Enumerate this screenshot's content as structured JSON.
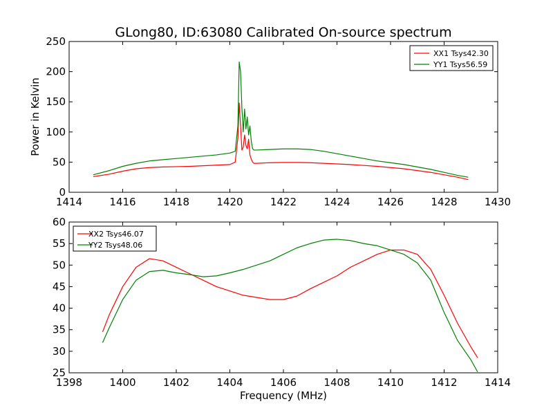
{
  "chart_data": [
    {
      "type": "line",
      "title": "GLong80, ID:63080 Calibrated On-source spectrum",
      "xlabel": "",
      "ylabel": "Power in Kelvin",
      "xlim": [
        1414,
        1430
      ],
      "ylim": [
        0,
        250
      ],
      "xticks": [
        1414,
        1416,
        1418,
        1420,
        1422,
        1424,
        1426,
        1428,
        1430
      ],
      "yticks": [
        0,
        50,
        100,
        150,
        200,
        250
      ],
      "legend_position": "top-right",
      "grid": false,
      "series": [
        {
          "name": "XX1 Tsys42.30",
          "color": "#ff0000",
          "x": [
            1414.9,
            1415.5,
            1416.0,
            1416.5,
            1417.0,
            1417.5,
            1418.0,
            1418.5,
            1419.0,
            1419.5,
            1420.0,
            1420.2,
            1420.3,
            1420.35,
            1420.4,
            1420.45,
            1420.5,
            1420.55,
            1420.6,
            1420.65,
            1420.7,
            1420.75,
            1420.8,
            1420.85,
            1420.9,
            1421.0,
            1421.5,
            1422.0,
            1422.5,
            1423.0,
            1423.5,
            1424.0,
            1424.5,
            1425.0,
            1425.5,
            1426.0,
            1426.5,
            1427.0,
            1427.5,
            1428.0,
            1428.5,
            1428.9
          ],
          "values": [
            26,
            30,
            35,
            39,
            41,
            42,
            42.5,
            43,
            44,
            45,
            46,
            50,
            90,
            148,
            110,
            70,
            75,
            95,
            78,
            72,
            88,
            62,
            55,
            50,
            48,
            48,
            49,
            49.5,
            49.5,
            49,
            48,
            47,
            46,
            44.5,
            43,
            41,
            39,
            36,
            33,
            29,
            25,
            21
          ]
        },
        {
          "name": "YY1 Tsys56.59",
          "color": "#008000",
          "x": [
            1414.9,
            1415.5,
            1416.0,
            1416.5,
            1417.0,
            1417.5,
            1418.0,
            1418.5,
            1419.0,
            1419.5,
            1420.0,
            1420.2,
            1420.3,
            1420.35,
            1420.4,
            1420.45,
            1420.5,
            1420.55,
            1420.6,
            1420.65,
            1420.7,
            1420.75,
            1420.8,
            1420.85,
            1420.9,
            1421.0,
            1421.5,
            1422.0,
            1422.5,
            1423.0,
            1423.5,
            1424.0,
            1424.5,
            1425.0,
            1425.5,
            1426.0,
            1426.5,
            1427.0,
            1427.5,
            1428.0,
            1428.5,
            1428.9
          ],
          "values": [
            29,
            36,
            43,
            48,
            52,
            54,
            56,
            58,
            60,
            62,
            65,
            68,
            110,
            216,
            200,
            140,
            100,
            138,
            105,
            125,
            95,
            110,
            85,
            72,
            70,
            70,
            71,
            72,
            72,
            71,
            68,
            64,
            60,
            56,
            52,
            49,
            46,
            42,
            38,
            33,
            28,
            25
          ]
        }
      ]
    },
    {
      "type": "line",
      "title": "",
      "xlabel": "Frequency (MHz)",
      "ylabel": "",
      "xlim": [
        1398,
        1414
      ],
      "ylim": [
        25,
        60
      ],
      "xticks": [
        1398,
        1400,
        1402,
        1404,
        1406,
        1408,
        1410,
        1412,
        1414
      ],
      "yticks": [
        25,
        30,
        35,
        40,
        45,
        50,
        55,
        60
      ],
      "legend_position": "top-left",
      "grid": false,
      "series": [
        {
          "name": "XX2 Tsys46.07",
          "color": "#ff0000",
          "x": [
            1399.25,
            1399.5,
            1400.0,
            1400.5,
            1401.0,
            1401.5,
            1402.0,
            1402.5,
            1403.0,
            1403.5,
            1404.0,
            1404.5,
            1405.0,
            1405.5,
            1406.0,
            1406.5,
            1407.0,
            1407.5,
            1408.0,
            1408.5,
            1409.0,
            1409.5,
            1410.0,
            1410.5,
            1411.0,
            1411.5,
            1412.0,
            1412.5,
            1413.0,
            1413.25
          ],
          "values": [
            34.5,
            38.5,
            45,
            49.5,
            51.5,
            51,
            49.5,
            48,
            46.5,
            45,
            44,
            43,
            42.5,
            42,
            42,
            42.8,
            44.5,
            46,
            47.5,
            49.5,
            51,
            52.5,
            53.5,
            53.5,
            52.5,
            49,
            43,
            36.5,
            31,
            28.5
          ]
        },
        {
          "name": "YY2 Tsys48.06",
          "color": "#008000",
          "x": [
            1399.25,
            1399.5,
            1400.0,
            1400.5,
            1401.0,
            1401.5,
            1402.0,
            1402.5,
            1403.0,
            1403.5,
            1404.0,
            1404.5,
            1405.0,
            1405.5,
            1406.0,
            1406.5,
            1407.0,
            1407.5,
            1408.0,
            1408.5,
            1409.0,
            1409.5,
            1410.0,
            1410.5,
            1411.0,
            1411.5,
            1412.0,
            1412.5,
            1413.0,
            1413.25
          ],
          "values": [
            32,
            35.5,
            42,
            46.5,
            48.5,
            48.8,
            48.2,
            47.8,
            47.3,
            47.5,
            48.2,
            49,
            50,
            51,
            52.5,
            54,
            55,
            55.8,
            56,
            55.7,
            55,
            54.5,
            53.5,
            52.5,
            50.5,
            46.5,
            39,
            32.5,
            28,
            25.2
          ]
        }
      ]
    }
  ]
}
